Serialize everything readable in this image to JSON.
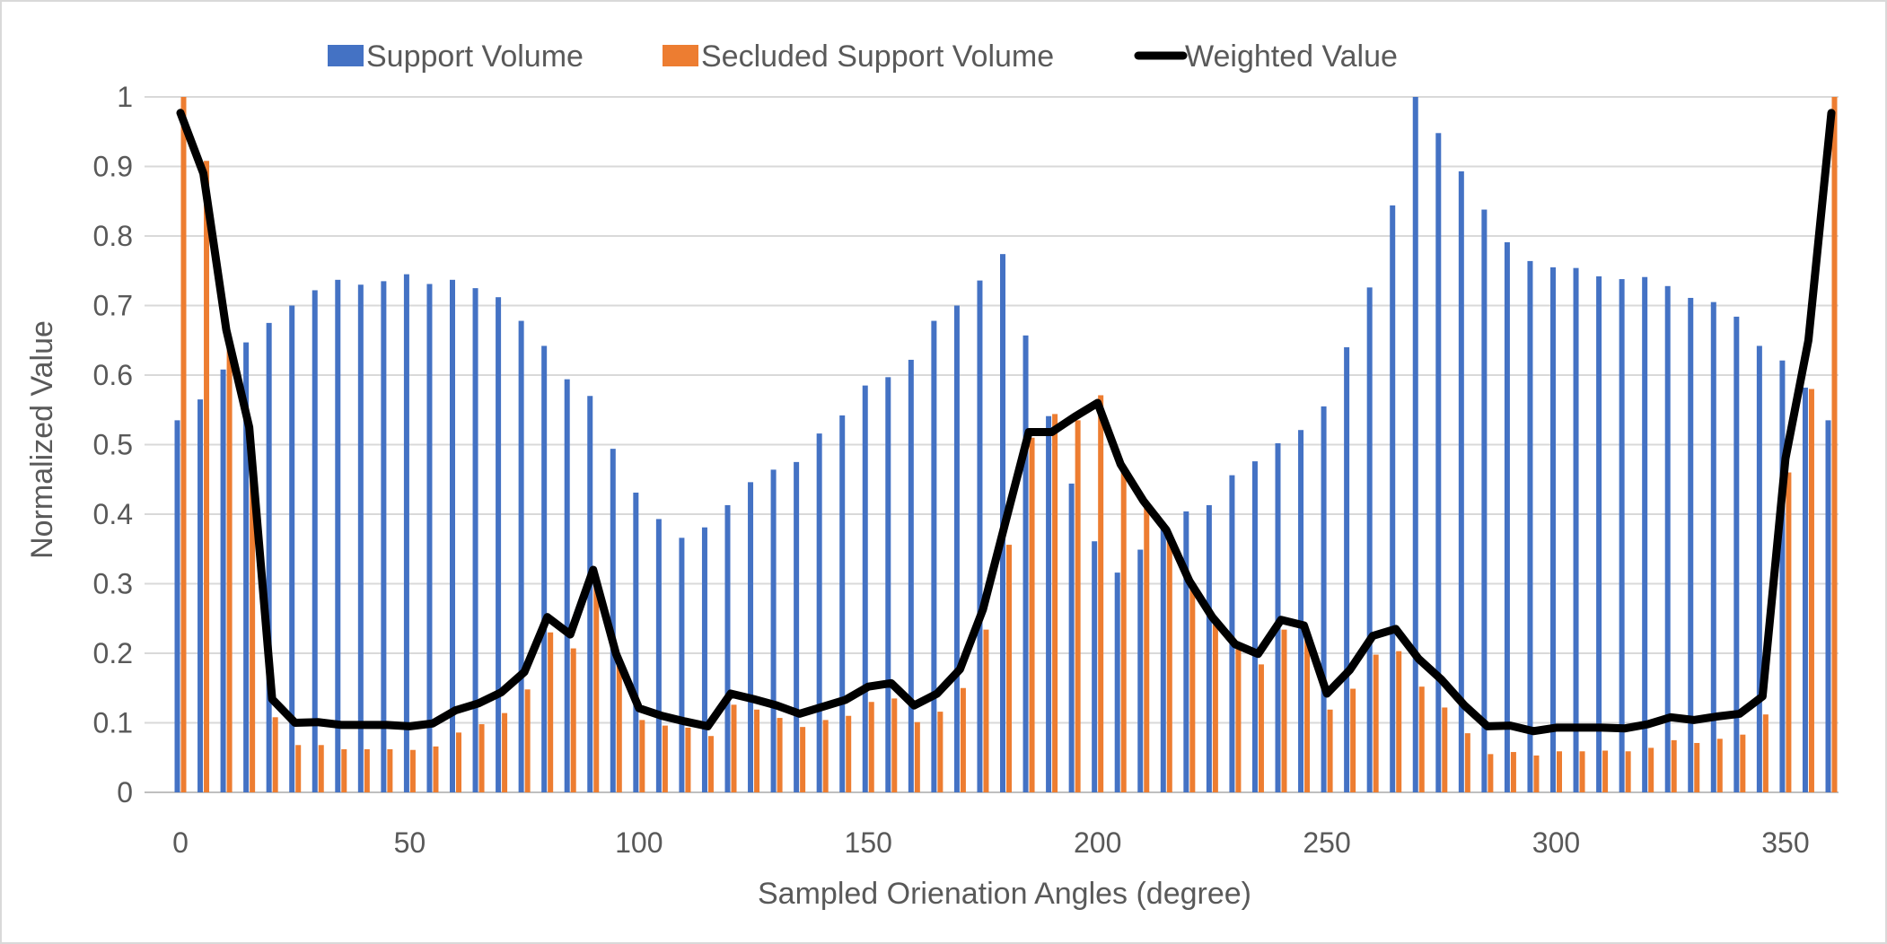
{
  "chart_data": {
    "type": "bar",
    "title": "",
    "xlabel": "Sampled Orienation Angles (degree)",
    "ylabel": "Normalized Value",
    "ylim": [
      0,
      1
    ],
    "yticks": [
      "0",
      "0.1",
      "0.2",
      "0.3",
      "0.4",
      "0.5",
      "0.6",
      "0.7",
      "0.8",
      "0.9",
      "1"
    ],
    "xlim": [
      0,
      360
    ],
    "xticks": [
      "0",
      "50",
      "100",
      "150",
      "200",
      "250",
      "300",
      "350"
    ],
    "xtick_values": [
      0,
      50,
      100,
      150,
      200,
      250,
      300,
      350
    ],
    "grid": true,
    "legend_position": "top",
    "x": [
      0,
      5,
      10,
      15,
      20,
      25,
      30,
      35,
      40,
      45,
      50,
      55,
      60,
      65,
      70,
      75,
      80,
      85,
      90,
      95,
      100,
      105,
      110,
      115,
      120,
      125,
      130,
      135,
      140,
      145,
      150,
      155,
      160,
      165,
      170,
      175,
      180,
      185,
      190,
      195,
      200,
      205,
      210,
      215,
      220,
      225,
      230,
      235,
      240,
      245,
      250,
      255,
      260,
      265,
      270,
      275,
      280,
      285,
      290,
      295,
      300,
      305,
      310,
      315,
      320,
      325,
      330,
      335,
      340,
      345,
      350,
      355,
      360
    ],
    "series": [
      {
        "name": "Support Volume",
        "kind": "bar",
        "color": "#4472C4",
        "values": [
          0.535,
          0.565,
          0.608,
          0.647,
          0.675,
          0.7,
          0.722,
          0.737,
          0.73,
          0.735,
          0.745,
          0.731,
          0.737,
          0.725,
          0.712,
          0.678,
          0.642,
          0.594,
          0.57,
          0.494,
          0.431,
          0.393,
          0.366,
          0.381,
          0.413,
          0.446,
          0.464,
          0.475,
          0.516,
          0.542,
          0.585,
          0.597,
          0.622,
          0.678,
          0.7,
          0.736,
          0.774,
          0.657,
          0.541,
          0.444,
          0.361,
          0.316,
          0.349,
          0.385,
          0.404,
          0.413,
          0.456,
          0.476,
          0.502,
          0.521,
          0.555,
          0.64,
          0.726,
          0.844,
          1.0,
          0.948,
          0.893,
          0.838,
          0.791,
          0.764,
          0.755,
          0.754,
          0.742,
          0.738,
          0.741,
          0.728,
          0.711,
          0.705,
          0.684,
          0.642,
          0.621,
          0.582,
          0.535
        ]
      },
      {
        "name": "Secluded Support Volume",
        "kind": "bar",
        "color": "#ED7D31",
        "values": [
          1.0,
          0.908,
          0.64,
          0.45,
          0.108,
          0.068,
          0.068,
          0.062,
          0.062,
          0.062,
          0.061,
          0.066,
          0.086,
          0.098,
          0.114,
          0.148,
          0.23,
          0.207,
          0.307,
          0.19,
          0.104,
          0.096,
          0.093,
          0.081,
          0.126,
          0.119,
          0.107,
          0.094,
          0.104,
          0.11,
          0.13,
          0.135,
          0.101,
          0.116,
          0.15,
          0.234,
          0.356,
          0.51,
          0.544,
          0.535,
          0.571,
          0.462,
          0.412,
          0.37,
          0.292,
          0.241,
          0.206,
          0.184,
          0.234,
          0.219,
          0.119,
          0.149,
          0.198,
          0.203,
          0.152,
          0.122,
          0.085,
          0.055,
          0.058,
          0.053,
          0.059,
          0.059,
          0.06,
          0.059,
          0.064,
          0.075,
          0.071,
          0.077,
          0.083,
          0.112,
          0.46,
          0.58,
          1.0
        ]
      },
      {
        "name": "Weighted Value",
        "kind": "line",
        "color": "#000000",
        "values": [
          0.977,
          0.89,
          0.665,
          0.525,
          0.134,
          0.1,
          0.101,
          0.097,
          0.097,
          0.097,
          0.095,
          0.099,
          0.118,
          0.128,
          0.144,
          0.173,
          0.252,
          0.227,
          0.32,
          0.199,
          0.121,
          0.11,
          0.102,
          0.095,
          0.142,
          0.134,
          0.125,
          0.113,
          0.123,
          0.133,
          0.152,
          0.157,
          0.125,
          0.142,
          0.177,
          0.263,
          0.391,
          0.518,
          0.518,
          0.54,
          0.56,
          0.472,
          0.419,
          0.377,
          0.304,
          0.252,
          0.213,
          0.199,
          0.248,
          0.24,
          0.142,
          0.176,
          0.225,
          0.235,
          0.192,
          0.162,
          0.125,
          0.095,
          0.096,
          0.088,
          0.093,
          0.093,
          0.093,
          0.092,
          0.098,
          0.108,
          0.104,
          0.109,
          0.113,
          0.138,
          0.48,
          0.65,
          0.977
        ]
      }
    ]
  }
}
